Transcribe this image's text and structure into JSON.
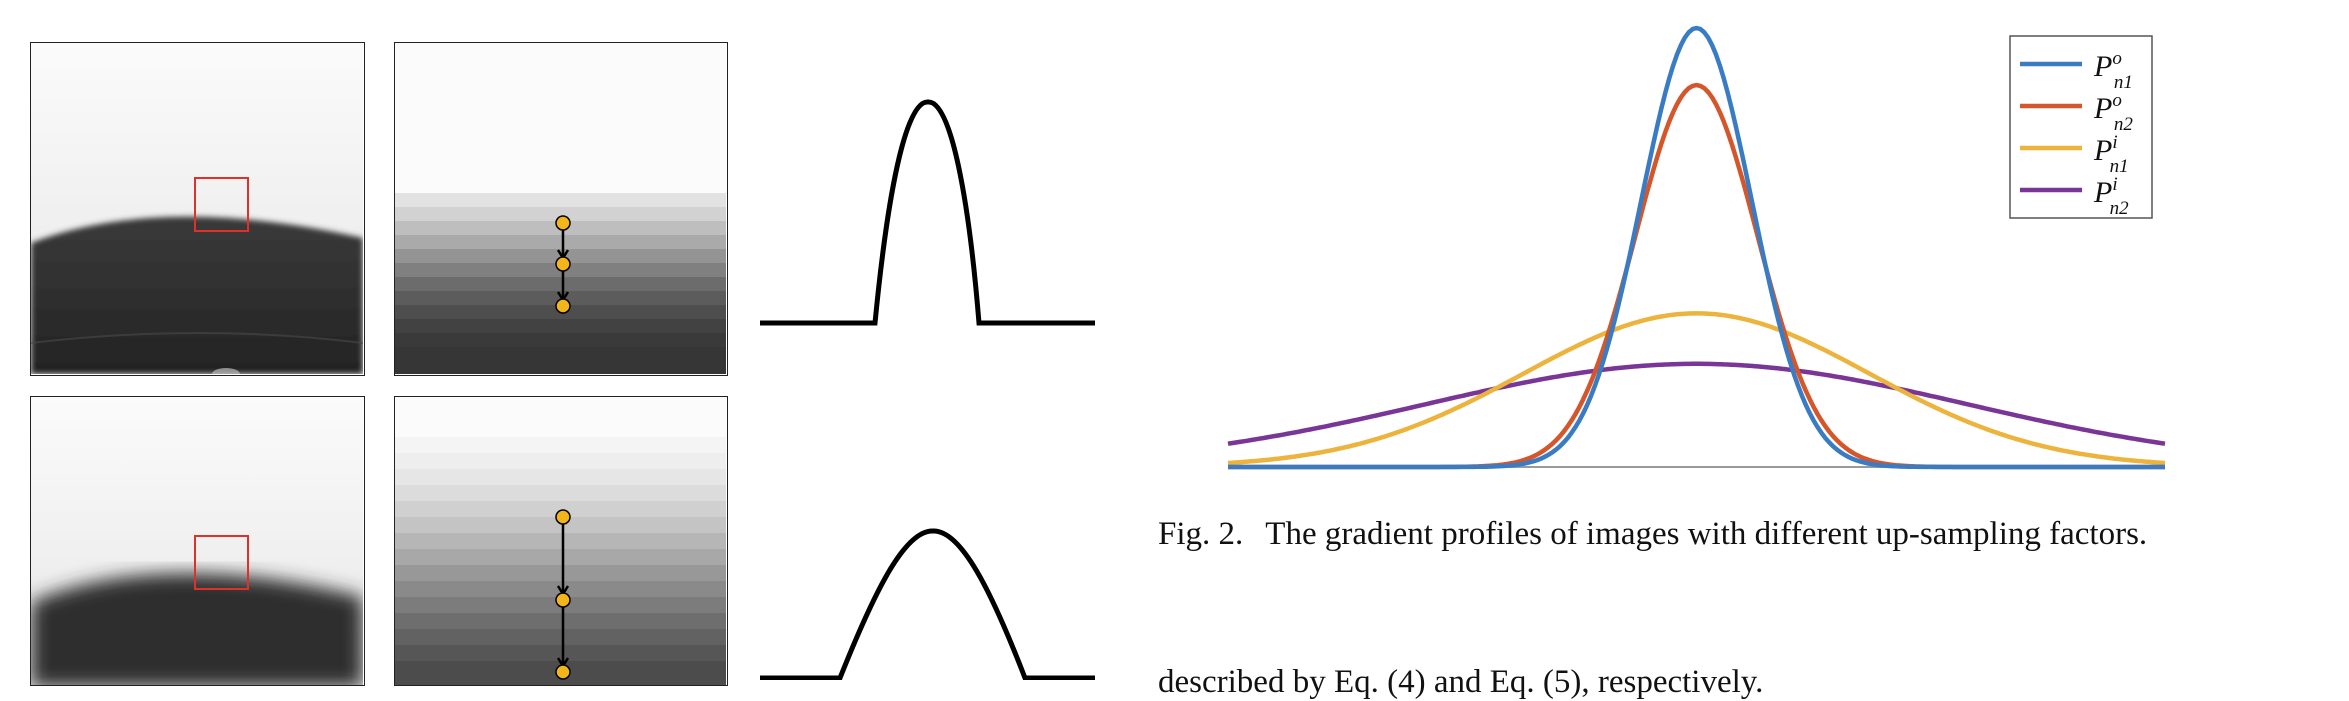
{
  "caption": {
    "label": "Fig. 2.",
    "text": "The gradient profiles of images with different up-sampling factors."
  },
  "body_text_cut": "described by Eq. (4) and Eq. (5), respectively.",
  "colors": {
    "roi_box": "#e0302a",
    "marker": "#f2b51a",
    "series_n1_o": "#3a7cc4",
    "series_n2_o": "#d4562a",
    "series_n1_i": "#ecb43c",
    "series_n2_i": "#7a3696"
  },
  "chart_data": {
    "type": "line",
    "title": "",
    "xlabel": "",
    "ylabel": "",
    "legend_position": "top-right",
    "grid": false,
    "x_range": [
      -1,
      1
    ],
    "y_range": [
      0,
      1
    ],
    "series": [
      {
        "name": "P",
        "sup": "o",
        "sub": "n1",
        "peak": 1.0,
        "width": 0.118,
        "color": "#3a7cc4"
      },
      {
        "name": "P",
        "sup": "o",
        "sub": "n2",
        "peak": 0.87,
        "width": 0.13,
        "color": "#d4562a"
      },
      {
        "name": "P",
        "sup": "i",
        "sub": "n1",
        "peak": 0.35,
        "width": 0.37,
        "color": "#ecb43c"
      },
      {
        "name": "P",
        "sup": "i",
        "sub": "n2",
        "peak": 0.235,
        "width": 0.58,
        "color": "#7a3696"
      }
    ]
  },
  "left_figure": {
    "rows": [
      {
        "edge_sharpness": "sharp",
        "markers": 3
      },
      {
        "edge_sharpness": "blurred",
        "markers": 3
      }
    ]
  }
}
